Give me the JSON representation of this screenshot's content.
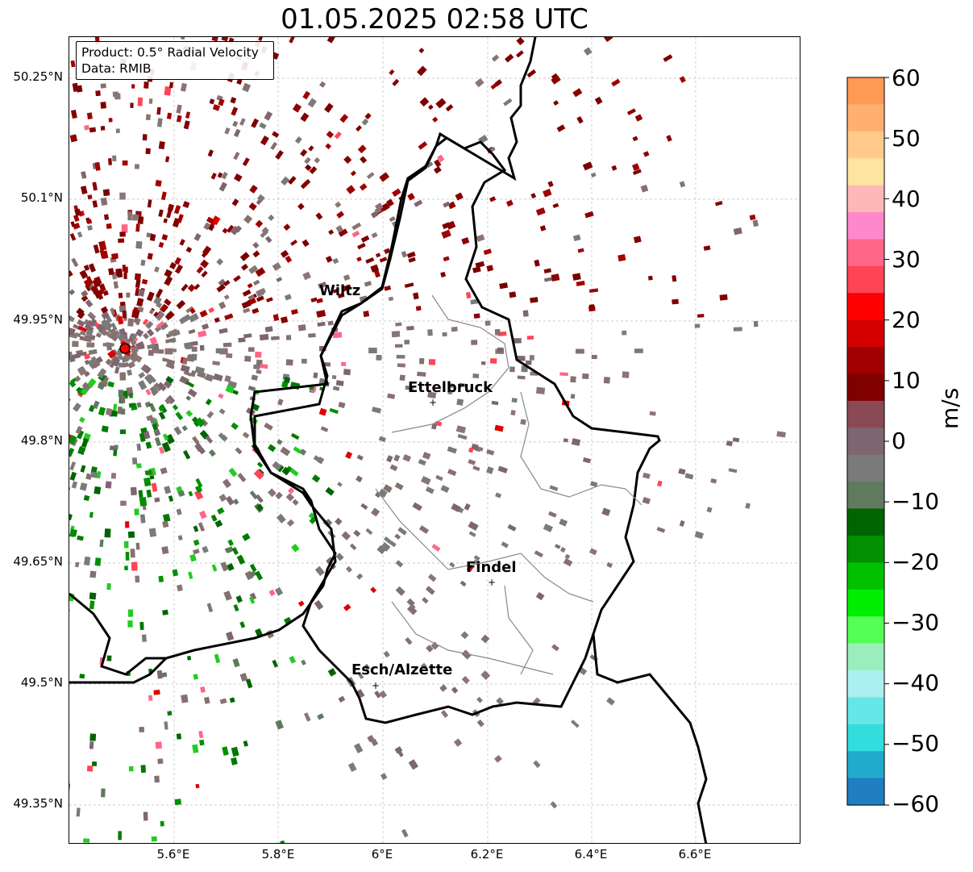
{
  "title": "01.05.2025 02:58 UTC",
  "info": {
    "product": "Product: 0.5° Radial Velocity",
    "data_source": "Data: RMIB"
  },
  "axes": {
    "lat_ticks": [
      "50.25°N",
      "50.1°N",
      "49.95°N",
      "49.8°N",
      "49.65°N",
      "49.5°N",
      "49.35°N"
    ],
    "lon_ticks": [
      "5.6°E",
      "5.8°E",
      "6°E",
      "6.2°E",
      "6.4°E",
      "6.6°E"
    ],
    "gridlines": true
  },
  "cities": [
    {
      "name": "Wiltz"
    },
    {
      "name": "Ettelbruck"
    },
    {
      "name": "Findel"
    },
    {
      "name": "Esch/Alzette"
    }
  ],
  "radar_site": {
    "color": "#ff0000"
  },
  "colorbar": {
    "unit": "m/s",
    "range": [
      -60,
      60
    ],
    "tick_labels": [
      "60",
      "50",
      "40",
      "30",
      "20",
      "10",
      "0",
      "−10",
      "−20",
      "−30",
      "−40",
      "−50",
      "−60"
    ],
    "colors_top_to_bottom": [
      "#ff9a55",
      "#ffb070",
      "#ffca8a",
      "#ffe4a0",
      "#ffb8b8",
      "#ff88cc",
      "#ff6688",
      "#ff4455",
      "#ff0000",
      "#d40000",
      "#a00000",
      "#800000",
      "#8a4a55",
      "#7e6670",
      "#7a7a7a",
      "#5f7a5f",
      "#006400",
      "#009000",
      "#00c000",
      "#00ee00",
      "#55ff55",
      "#99eebb",
      "#aaf0f0",
      "#66e6e6",
      "#33dddd",
      "#22aacc",
      "#1f7fc0"
    ]
  }
}
